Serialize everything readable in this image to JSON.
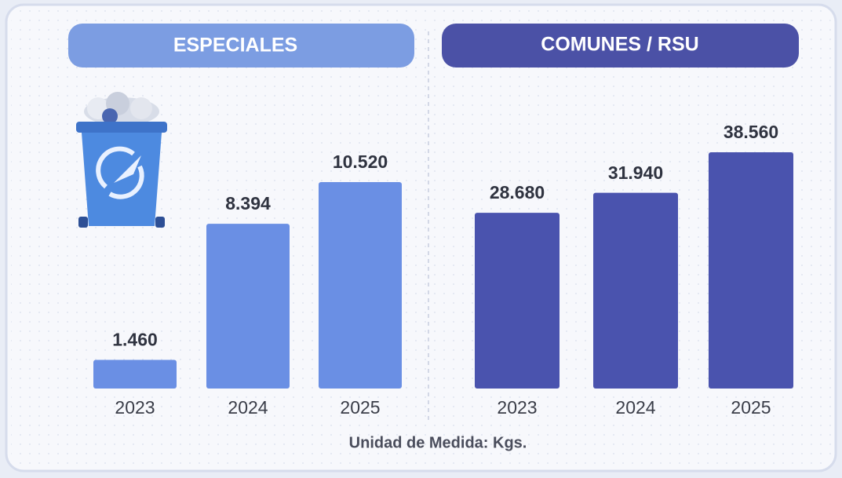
{
  "chart_data": [
    {
      "type": "bar",
      "title": "ESPECIALES",
      "categories": [
        "2023",
        "2024",
        "2025"
      ],
      "values": [
        1460,
        8394,
        10520
      ],
      "value_labels": [
        "1.460",
        "8.394",
        "10.520"
      ],
      "color": "#6a8fe4"
    },
    {
      "type": "bar",
      "title": "COMUNES / RSU",
      "categories": [
        "2023",
        "2024",
        "2025"
      ],
      "values": [
        28680,
        31940,
        38560
      ],
      "value_labels": [
        "28.680",
        "31.940",
        "38.560"
      ],
      "color": "#4a53ae"
    }
  ],
  "footer": "Unidad de Medida:  Kgs."
}
